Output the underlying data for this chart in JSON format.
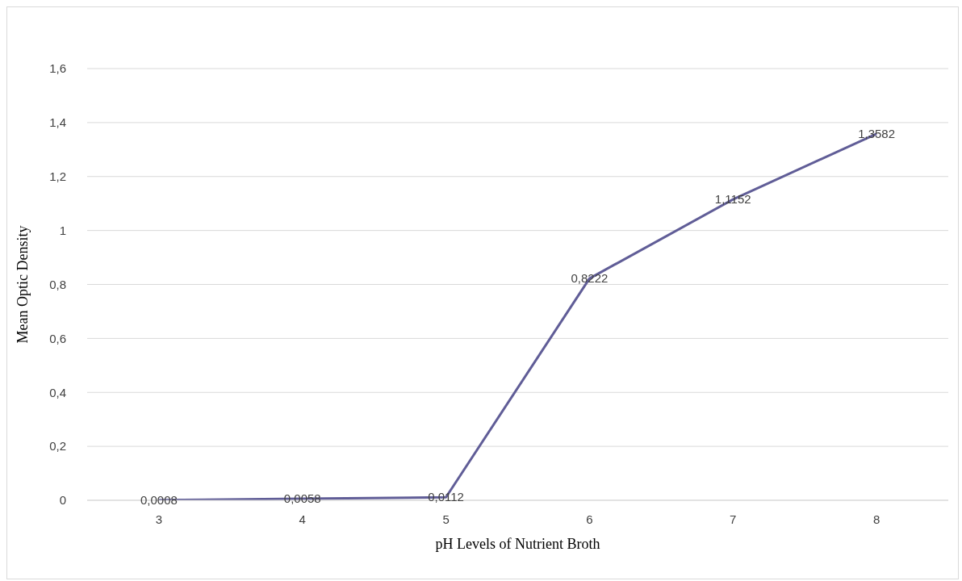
{
  "chart_data": {
    "type": "line",
    "xlabel": "pH Levels of Nutrient Broth",
    "ylabel": "Mean Optic Density",
    "categories": [
      "3",
      "4",
      "5",
      "6",
      "7",
      "8"
    ],
    "values": [
      0.0008,
      0.0058,
      0.0112,
      0.8222,
      1.1152,
      1.3582
    ],
    "value_labels": [
      "0,0008",
      "0,0058",
      "0,0112",
      "0,8222",
      "1,1152",
      "1,3582"
    ],
    "color": "#605d97",
    "ylim": [
      0,
      1.6
    ],
    "yticks": [
      0,
      {
        "value": 0.2,
        "label": "0,2"
      },
      {
        "value": 0.4,
        "label": "0,4"
      },
      {
        "value": 0.6,
        "label": "0,6"
      },
      {
        "value": 0.8,
        "label": "0,8"
      },
      1,
      {
        "value": 1.2,
        "label": "1,2"
      },
      {
        "value": 1.4,
        "label": "1,4"
      },
      {
        "value": 1.6,
        "label": "1,6"
      }
    ],
    "grid": "y",
    "marker": "none",
    "line_style": "solid"
  }
}
